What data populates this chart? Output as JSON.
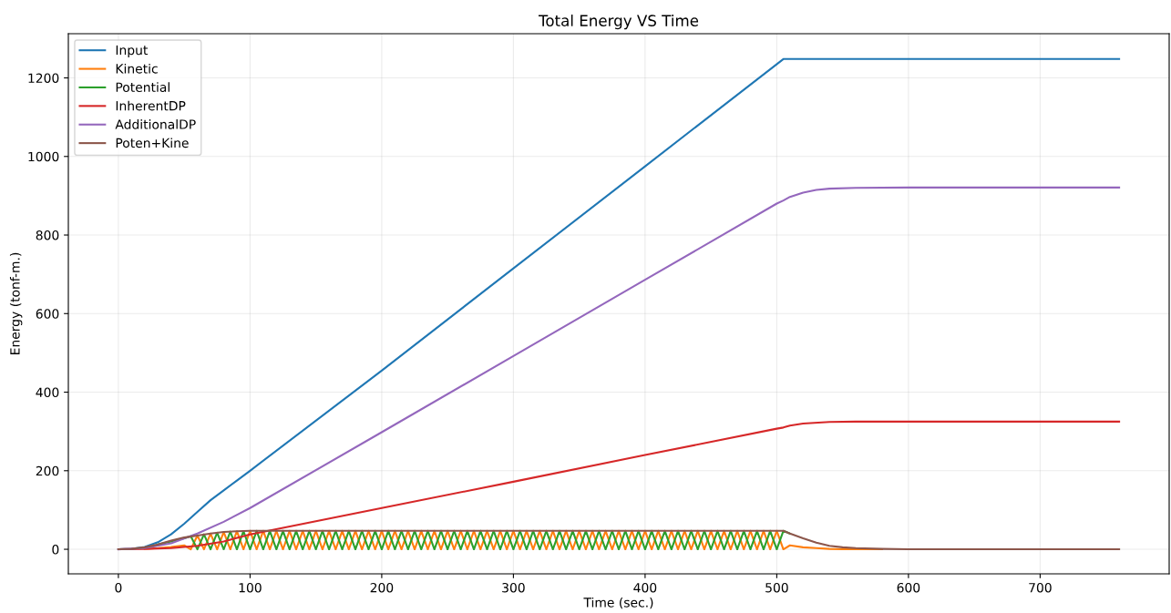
{
  "chart_data": {
    "type": "line",
    "title": "Total Energy VS Time",
    "xlabel": "Time (sec.)",
    "ylabel": "Energy (tonf-m.)",
    "xlim": [
      -38,
      798
    ],
    "xticks": [
      0,
      100,
      200,
      300,
      400,
      500,
      600,
      700
    ],
    "ylim": [
      -62.5,
      1312.5
    ],
    "yticks": [
      0,
      200,
      400,
      600,
      800,
      1000,
      1200
    ],
    "grid": true,
    "legend": "top left",
    "line_style": "solid",
    "marker": "none",
    "series": [
      {
        "name": "Input",
        "color": "#1f77b4",
        "x": [
          0,
          10,
          20,
          30,
          40,
          50,
          60,
          70,
          80,
          90,
          100,
          200,
          300,
          400,
          505,
          510,
          760
        ],
        "values": [
          0,
          1,
          6,
          18,
          38,
          65,
          95,
          125,
          150,
          175,
          200,
          455,
          715,
          975,
          1248,
          1248,
          1248
        ]
      },
      {
        "name": "Kinetic",
        "color": "#ff7f0e",
        "x": [
          20,
          30,
          40,
          50,
          55,
          60,
          65,
          70,
          75,
          80,
          85,
          90,
          95,
          100,
          105,
          110,
          115,
          120,
          125,
          130,
          135,
          140,
          145,
          150,
          155,
          160,
          165,
          170,
          175,
          180,
          185,
          190,
          195,
          200,
          205,
          210,
          215,
          220,
          225,
          230,
          235,
          240,
          245,
          250,
          255,
          260,
          265,
          270,
          275,
          280,
          285,
          290,
          295,
          300,
          305,
          310,
          315,
          320,
          325,
          330,
          335,
          340,
          345,
          350,
          355,
          360,
          365,
          370,
          375,
          380,
          385,
          390,
          395,
          400,
          405,
          410,
          415,
          420,
          425,
          430,
          435,
          440,
          445,
          450,
          455,
          460,
          465,
          470,
          475,
          480,
          485,
          490,
          495,
          500,
          505,
          510,
          520,
          530,
          540,
          550,
          560,
          580
        ],
        "values": [
          1,
          3,
          6,
          10,
          0,
          35,
          0,
          40,
          0,
          44,
          0,
          46,
          0,
          47,
          0,
          47,
          0,
          47,
          0,
          47,
          0,
          47,
          0,
          47,
          0,
          47,
          0,
          47,
          0,
          47,
          0,
          47,
          0,
          47,
          0,
          47,
          0,
          47,
          0,
          47,
          0,
          47,
          0,
          47,
          0,
          47,
          0,
          47,
          0,
          47,
          0,
          47,
          0,
          47,
          0,
          47,
          0,
          47,
          0,
          47,
          0,
          47,
          0,
          47,
          0,
          47,
          0,
          47,
          0,
          47,
          0,
          47,
          0,
          47,
          0,
          47,
          0,
          47,
          0,
          47,
          0,
          47,
          0,
          47,
          0,
          47,
          0,
          47,
          0,
          47,
          0,
          47,
          0,
          47,
          0,
          10,
          5,
          3,
          1,
          0,
          0,
          0
        ]
      },
      {
        "name": "Potential",
        "color": "#2ca02c",
        "x": [
          30,
          40,
          50,
          55,
          60,
          65,
          70,
          75,
          80,
          85,
          90,
          95,
          100,
          105,
          110,
          115,
          120,
          125,
          130,
          135,
          140,
          145,
          150,
          155,
          160,
          165,
          170,
          175,
          180,
          185,
          190,
          195,
          200,
          205,
          210,
          215,
          220,
          225,
          230,
          235,
          240,
          245,
          250,
          255,
          260,
          265,
          270,
          275,
          280,
          285,
          290,
          295,
          300,
          305,
          310,
          315,
          320,
          325,
          330,
          335,
          340,
          345,
          350,
          355,
          360,
          365,
          370,
          375,
          380,
          385,
          390,
          395,
          400,
          405,
          410,
          415,
          420,
          425,
          430,
          435,
          440,
          445,
          450,
          455,
          460,
          465,
          470,
          475,
          480,
          485,
          490,
          495,
          500,
          505,
          510
        ],
        "values": [
          12,
          20,
          28,
          33,
          0,
          38,
          0,
          42,
          0,
          45,
          0,
          46,
          0,
          47,
          0,
          47,
          0,
          47,
          0,
          47,
          0,
          47,
          0,
          47,
          0,
          47,
          0,
          47,
          0,
          47,
          0,
          47,
          0,
          47,
          0,
          47,
          0,
          47,
          0,
          47,
          0,
          47,
          0,
          47,
          0,
          47,
          0,
          47,
          0,
          47,
          0,
          47,
          0,
          47,
          0,
          47,
          0,
          47,
          0,
          47,
          0,
          47,
          0,
          47,
          0,
          47,
          0,
          47,
          0,
          47,
          0,
          47,
          0,
          47,
          0,
          47,
          0,
          47,
          0,
          47,
          0,
          47,
          0,
          47,
          0,
          47,
          0,
          47,
          0,
          47,
          0,
          47,
          0,
          47,
          40
        ]
      },
      {
        "name": "InherentDP",
        "color": "#d62728",
        "x": [
          0,
          20,
          40,
          60,
          80,
          100,
          200,
          300,
          400,
          500,
          505,
          510,
          520,
          540,
          560,
          760
        ],
        "values": [
          0,
          1,
          3,
          9,
          20,
          38,
          105,
          172,
          240,
          307,
          310,
          315,
          320,
          324,
          325,
          325
        ]
      },
      {
        "name": "AdditionalDP",
        "color": "#9467bd",
        "x": [
          0,
          20,
          40,
          60,
          80,
          100,
          200,
          300,
          400,
          500,
          505,
          510,
          520,
          530,
          540,
          560,
          600,
          760
        ],
        "values": [
          0,
          3,
          15,
          40,
          70,
          105,
          298,
          492,
          686,
          880,
          888,
          897,
          908,
          915,
          918,
          920,
          921,
          921
        ]
      },
      {
        "name": "Poten+Kine",
        "color": "#8c564b",
        "x": [
          0,
          10,
          20,
          30,
          40,
          50,
          60,
          70,
          80,
          90,
          100,
          505,
          510,
          520,
          530,
          540,
          550,
          560,
          580,
          600,
          760
        ],
        "values": [
          0,
          1,
          5,
          12,
          22,
          30,
          35,
          40,
          44,
          46,
          47,
          47,
          40,
          28,
          17,
          9,
          5,
          3,
          1,
          0,
          0
        ]
      }
    ]
  }
}
